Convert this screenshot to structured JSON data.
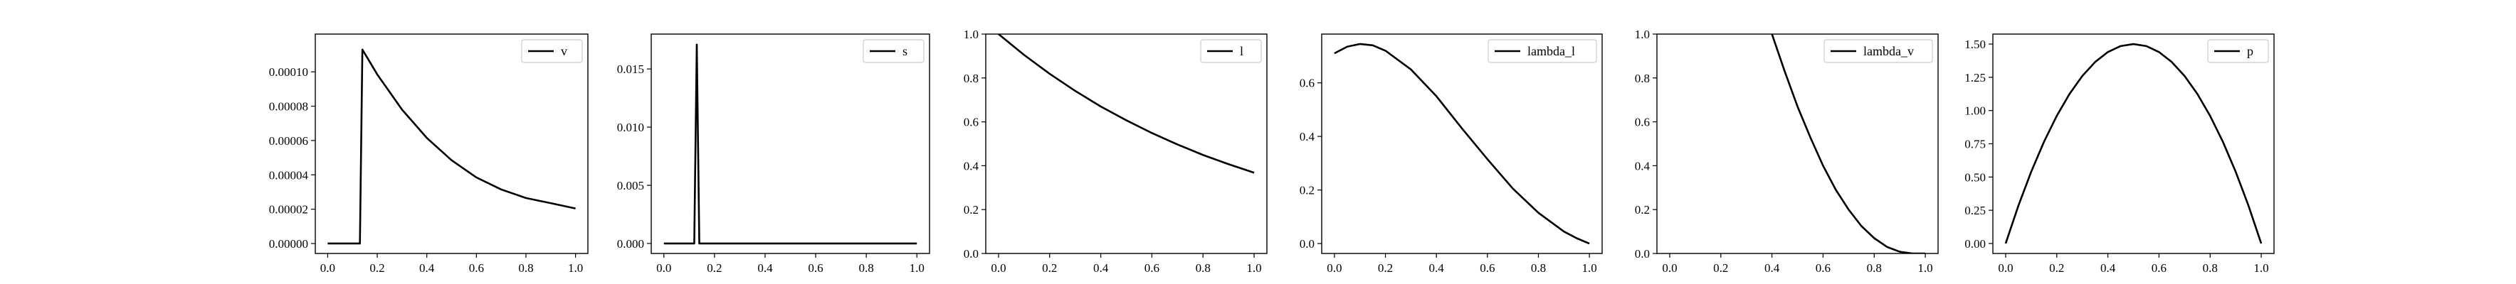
{
  "chart_data": [
    {
      "type": "line",
      "series": [
        {
          "name": "v",
          "color": "#000000",
          "x": [
            0.0,
            0.13,
            0.14,
            0.2,
            0.3,
            0.4,
            0.5,
            0.6,
            0.7,
            0.8,
            0.9,
            1.0
          ],
          "y": [
            0.0,
            0.0,
            0.000113,
            9.85e-05,
            7.8e-05,
            6.15e-05,
            4.85e-05,
            3.85e-05,
            3.15e-05,
            2.65e-05,
            2.35e-05,
            2.04e-05
          ]
        }
      ],
      "xlim": [
        -0.05,
        1.05
      ],
      "ylim": [
        -5.8e-06,
        0.000122
      ],
      "xticks": [
        0.0,
        0.2,
        0.4,
        0.6,
        0.8,
        1.0
      ],
      "xtick_labels": [
        "0.0",
        "0.2",
        "0.4",
        "0.6",
        "0.8",
        "1.0"
      ],
      "yticks": [
        0.0,
        2e-05,
        4e-05,
        6e-05,
        8e-05,
        0.0001
      ],
      "ytick_labels": [
        "0.00000",
        "0.00002",
        "0.00004",
        "0.00006",
        "0.00008",
        "0.00010"
      ],
      "legend": "top-right",
      "grid": false
    },
    {
      "type": "line",
      "series": [
        {
          "name": "s",
          "color": "#000000",
          "x": [
            0.0,
            0.12,
            0.13,
            0.14,
            1.0
          ],
          "y": [
            0.0,
            0.0,
            0.0171,
            0.0,
            0.0
          ]
        }
      ],
      "xlim": [
        -0.05,
        1.05
      ],
      "ylim": [
        -0.00086,
        0.018
      ],
      "xticks": [
        0.0,
        0.2,
        0.4,
        0.6,
        0.8,
        1.0
      ],
      "xtick_labels": [
        "0.0",
        "0.2",
        "0.4",
        "0.6",
        "0.8",
        "1.0"
      ],
      "yticks": [
        0.0,
        0.005,
        0.01,
        0.015
      ],
      "ytick_labels": [
        "0.000",
        "0.005",
        "0.010",
        "0.015"
      ],
      "legend": "top-right",
      "grid": false
    },
    {
      "type": "line",
      "series": [
        {
          "name": "l",
          "color": "#000000",
          "x": [
            0.0,
            0.1,
            0.2,
            0.3,
            0.4,
            0.5,
            0.6,
            0.7,
            0.8,
            0.9,
            1.0
          ],
          "y": [
            1.0,
            0.905,
            0.819,
            0.741,
            0.67,
            0.607,
            0.549,
            0.497,
            0.449,
            0.407,
            0.368
          ]
        }
      ],
      "xlim": [
        -0.05,
        1.05
      ],
      "ylim": [
        0.0,
        1.0
      ],
      "xticks": [
        0.0,
        0.2,
        0.4,
        0.6,
        0.8,
        1.0
      ],
      "xtick_labels": [
        "0.0",
        "0.2",
        "0.4",
        "0.6",
        "0.8",
        "1.0"
      ],
      "yticks": [
        0.0,
        0.2,
        0.4,
        0.6,
        0.8,
        1.0
      ],
      "ytick_labels": [
        "0.0",
        "0.2",
        "0.4",
        "0.6",
        "0.8",
        "1.0"
      ],
      "legend": "top-right",
      "grid": false
    },
    {
      "type": "line",
      "series": [
        {
          "name": "lambda_l",
          "color": "#000000",
          "x": [
            0.0,
            0.05,
            0.1,
            0.15,
            0.2,
            0.3,
            0.4,
            0.5,
            0.6,
            0.7,
            0.8,
            0.9,
            0.95,
            1.0
          ],
          "y": [
            0.71,
            0.735,
            0.745,
            0.74,
            0.72,
            0.65,
            0.55,
            0.43,
            0.315,
            0.205,
            0.115,
            0.045,
            0.02,
            0.0
          ]
        }
      ],
      "xlim": [
        -0.05,
        1.05
      ],
      "ylim": [
        -0.037,
        0.782
      ],
      "xticks": [
        0.0,
        0.2,
        0.4,
        0.6,
        0.8,
        1.0
      ],
      "xtick_labels": [
        "0.0",
        "0.2",
        "0.4",
        "0.6",
        "0.8",
        "1.0"
      ],
      "yticks": [
        0.0,
        0.2,
        0.4,
        0.6
      ],
      "ytick_labels": [
        "0.0",
        "0.2",
        "0.4",
        "0.6"
      ],
      "legend": "top-right",
      "grid": false
    },
    {
      "type": "line",
      "series": [
        {
          "name": "lambda_v",
          "color": "#000000",
          "x": [
            0.4,
            0.45,
            0.5,
            0.55,
            0.6,
            0.65,
            0.7,
            0.75,
            0.8,
            0.85,
            0.9,
            0.95,
            1.0
          ],
          "y": [
            1.0,
            0.83,
            0.67,
            0.53,
            0.4,
            0.29,
            0.2,
            0.125,
            0.07,
            0.03,
            0.008,
            0.0,
            0.0
          ]
        }
      ],
      "xlim": [
        -0.05,
        1.05
      ],
      "ylim": [
        0.0,
        1.0
      ],
      "xticks": [
        0.0,
        0.2,
        0.4,
        0.6,
        0.8,
        1.0
      ],
      "xtick_labels": [
        "0.0",
        "0.2",
        "0.4",
        "0.6",
        "0.8",
        "1.0"
      ],
      "yticks": [
        0.0,
        0.2,
        0.4,
        0.6,
        0.8,
        1.0
      ],
      "ytick_labels": [
        "0.0",
        "0.2",
        "0.4",
        "0.6",
        "0.8",
        "1.0"
      ],
      "legend": "top-right",
      "grid": false
    },
    {
      "type": "line",
      "series": [
        {
          "name": "p",
          "color": "#000000",
          "x": [
            0.0,
            0.05,
            0.1,
            0.15,
            0.2,
            0.25,
            0.3,
            0.35,
            0.4,
            0.45,
            0.5,
            0.55,
            0.6,
            0.65,
            0.7,
            0.75,
            0.8,
            0.85,
            0.9,
            0.95,
            1.0
          ],
          "y": [
            0.0,
            0.285,
            0.54,
            0.765,
            0.96,
            1.125,
            1.26,
            1.365,
            1.44,
            1.485,
            1.5,
            1.485,
            1.44,
            1.365,
            1.26,
            1.125,
            0.96,
            0.765,
            0.54,
            0.285,
            0.0
          ]
        }
      ],
      "xlim": [
        -0.05,
        1.05
      ],
      "ylim": [
        -0.075,
        1.575
      ],
      "xticks": [
        0.0,
        0.2,
        0.4,
        0.6,
        0.8,
        1.0
      ],
      "xtick_labels": [
        "0.0",
        "0.2",
        "0.4",
        "0.6",
        "0.8",
        "1.0"
      ],
      "yticks": [
        0.0,
        0.25,
        0.5,
        0.75,
        1.0,
        1.25,
        1.5
      ],
      "ytick_labels": [
        "0.00",
        "0.25",
        "0.50",
        "0.75",
        "1.00",
        "1.25",
        "1.50"
      ],
      "legend": "top-right",
      "grid": false
    }
  ]
}
